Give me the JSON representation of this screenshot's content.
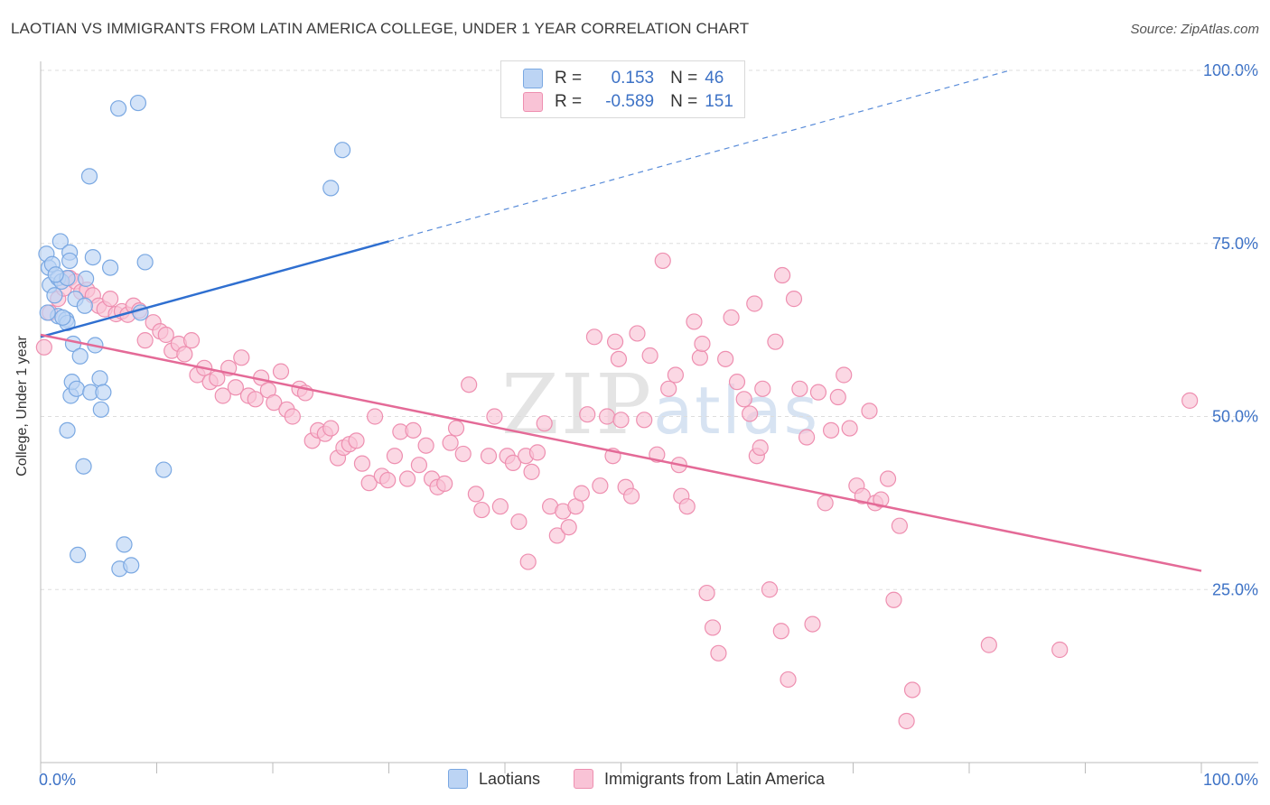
{
  "title": "LAOTIAN VS IMMIGRANTS FROM LATIN AMERICA COLLEGE, UNDER 1 YEAR CORRELATION CHART",
  "source": "Source: ZipAtlas.com",
  "watermark": {
    "zip": "ZIP",
    "atlas": "atlas"
  },
  "legend": {
    "r_label": "R =",
    "n_label": "N =",
    "rows": [
      {
        "r": "0.153",
        "n": "46"
      },
      {
        "r": "-0.589",
        "n": "151"
      }
    ]
  },
  "colors": {
    "blue_fill": "#bcd4f4",
    "blue_stroke": "#7aa8e2",
    "blue_line": "#2f6fd0",
    "pink_fill": "#f9c3d6",
    "pink_stroke": "#ee8fb0",
    "pink_line": "#e46a97",
    "tick_text": "#3d72c6"
  },
  "chart_data": {
    "type": "scatter",
    "title": "LAOTIAN VS IMMIGRANTS FROM LATIN AMERICA COLLEGE, UNDER 1 YEAR CORRELATION CHART",
    "xlabel": "",
    "ylabel": "College, Under 1 year",
    "xlim": [
      0,
      100
    ],
    "ylim": [
      0,
      105
    ],
    "x_tick_labels": [
      "0.0%",
      "100.0%"
    ],
    "y_ticks": [
      25,
      50,
      75,
      100
    ],
    "y_tick_labels": [
      "25.0%",
      "50.0%",
      "75.0%",
      "100.0%"
    ],
    "grid": "horizontal dashed",
    "legend_position": "top-center",
    "series": [
      {
        "name": "Laotians",
        "r": 0.153,
        "n": 46,
        "trend": {
          "x": [
            0,
            30
          ],
          "y": [
            61.5,
            75.3
          ],
          "extended_to": [
            83.5,
            100
          ]
        },
        "points": [
          [
            0.5,
            73.5
          ],
          [
            0.7,
            71.5
          ],
          [
            0.8,
            69.0
          ],
          [
            1.0,
            72.0
          ],
          [
            1.2,
            67.5
          ],
          [
            1.5,
            70.0
          ],
          [
            1.8,
            69.5
          ],
          [
            1.5,
            64.5
          ],
          [
            1.7,
            75.3
          ],
          [
            2.2,
            64.0
          ],
          [
            2.3,
            63.5
          ],
          [
            2.3,
            70.0
          ],
          [
            2.5,
            73.7
          ],
          [
            2.3,
            48.0
          ],
          [
            2.5,
            72.5
          ],
          [
            3.0,
            67.0
          ],
          [
            2.6,
            53.0
          ],
          [
            2.7,
            55.0
          ],
          [
            2.8,
            60.5
          ],
          [
            3.1,
            54.0
          ],
          [
            3.4,
            58.7
          ],
          [
            3.2,
            30.0
          ],
          [
            3.7,
            42.8
          ],
          [
            3.8,
            66.0
          ],
          [
            3.9,
            69.9
          ],
          [
            4.2,
            84.7
          ],
          [
            4.3,
            53.5
          ],
          [
            4.5,
            73.0
          ],
          [
            4.7,
            60.3
          ],
          [
            5.1,
            55.5
          ],
          [
            5.2,
            51.0
          ],
          [
            5.4,
            53.5
          ],
          [
            6.0,
            71.5
          ],
          [
            6.7,
            94.5
          ],
          [
            6.8,
            28.0
          ],
          [
            7.2,
            31.5
          ],
          [
            7.8,
            28.5
          ],
          [
            8.4,
            95.3
          ],
          [
            8.6,
            65.0
          ],
          [
            9.0,
            72.3
          ],
          [
            10.6,
            42.3
          ],
          [
            25.0,
            83.0
          ],
          [
            26.0,
            88.5
          ],
          [
            0.6,
            65.0
          ],
          [
            1.3,
            70.5
          ],
          [
            1.9,
            64.3
          ]
        ]
      },
      {
        "name": "Immigrants from Latin America",
        "r": -0.589,
        "n": 151,
        "trend": {
          "x": [
            0,
            100
          ],
          "y": [
            61.8,
            27.7
          ]
        },
        "points": [
          [
            0.3,
            60.0
          ],
          [
            0.8,
            65.0
          ],
          [
            1.5,
            67.0
          ],
          [
            2.0,
            68.5
          ],
          [
            2.5,
            70.0
          ],
          [
            3.0,
            69.5
          ],
          [
            3.5,
            68.0
          ],
          [
            4.0,
            68.3
          ],
          [
            4.5,
            67.5
          ],
          [
            5.0,
            66.0
          ],
          [
            5.5,
            65.5
          ],
          [
            6.0,
            67.0
          ],
          [
            6.5,
            64.8
          ],
          [
            7.0,
            65.2
          ],
          [
            7.5,
            64.7
          ],
          [
            8.0,
            66.0
          ],
          [
            8.5,
            65.3
          ],
          [
            9.0,
            61.0
          ],
          [
            9.7,
            63.6
          ],
          [
            10.3,
            62.3
          ],
          [
            10.8,
            61.8
          ],
          [
            11.3,
            59.5
          ],
          [
            11.9,
            60.5
          ],
          [
            12.4,
            59.0
          ],
          [
            13.0,
            61.0
          ],
          [
            13.5,
            56.0
          ],
          [
            14.1,
            57.0
          ],
          [
            14.6,
            55.0
          ],
          [
            15.2,
            55.5
          ],
          [
            15.7,
            53.0
          ],
          [
            16.2,
            57.0
          ],
          [
            16.8,
            54.2
          ],
          [
            17.3,
            58.5
          ],
          [
            17.9,
            53.0
          ],
          [
            18.5,
            52.5
          ],
          [
            19.0,
            55.6
          ],
          [
            19.6,
            53.8
          ],
          [
            20.1,
            52.0
          ],
          [
            20.7,
            56.5
          ],
          [
            21.2,
            51.0
          ],
          [
            21.7,
            50.0
          ],
          [
            22.3,
            54.0
          ],
          [
            22.8,
            53.4
          ],
          [
            23.4,
            46.5
          ],
          [
            23.9,
            48.0
          ],
          [
            24.5,
            47.5
          ],
          [
            25.0,
            48.3
          ],
          [
            25.6,
            44.0
          ],
          [
            26.1,
            45.5
          ],
          [
            26.6,
            46.0
          ],
          [
            27.2,
            46.5
          ],
          [
            27.7,
            43.2
          ],
          [
            28.3,
            40.4
          ],
          [
            28.8,
            50.0
          ],
          [
            29.4,
            41.4
          ],
          [
            29.9,
            40.8
          ],
          [
            30.5,
            44.3
          ],
          [
            31.0,
            47.8
          ],
          [
            31.6,
            41.0
          ],
          [
            32.1,
            48.0
          ],
          [
            32.6,
            43.0
          ],
          [
            33.2,
            45.8
          ],
          [
            33.7,
            41.0
          ],
          [
            34.2,
            39.8
          ],
          [
            34.8,
            40.3
          ],
          [
            35.3,
            46.2
          ],
          [
            35.8,
            48.3
          ],
          [
            36.4,
            44.6
          ],
          [
            36.9,
            54.6
          ],
          [
            37.5,
            38.8
          ],
          [
            38.0,
            36.5
          ],
          [
            38.6,
            44.3
          ],
          [
            39.1,
            50.0
          ],
          [
            39.6,
            37.0
          ],
          [
            40.2,
            44.3
          ],
          [
            40.7,
            43.3
          ],
          [
            41.2,
            34.8
          ],
          [
            41.8,
            44.3
          ],
          [
            42.3,
            42.0
          ],
          [
            42.8,
            44.8
          ],
          [
            43.4,
            49.0
          ],
          [
            43.9,
            37.0
          ],
          [
            44.5,
            32.8
          ],
          [
            45.0,
            36.3
          ],
          [
            45.5,
            34.0
          ],
          [
            46.1,
            37.0
          ],
          [
            46.6,
            38.9
          ],
          [
            47.1,
            50.3
          ],
          [
            47.7,
            61.5
          ],
          [
            48.2,
            40.0
          ],
          [
            48.8,
            50.0
          ],
          [
            49.3,
            44.3
          ],
          [
            49.8,
            58.3
          ],
          [
            50.4,
            39.8
          ],
          [
            50.9,
            38.5
          ],
          [
            51.4,
            62.0
          ],
          [
            52.0,
            49.5
          ],
          [
            52.5,
            58.8
          ],
          [
            53.1,
            44.5
          ],
          [
            53.6,
            72.5
          ],
          [
            54.1,
            54.0
          ],
          [
            54.7,
            56.0
          ],
          [
            55.2,
            38.5
          ],
          [
            55.7,
            37.0
          ],
          [
            56.3,
            63.7
          ],
          [
            56.8,
            58.5
          ],
          [
            57.4,
            24.5
          ],
          [
            57.9,
            19.5
          ],
          [
            58.4,
            15.8
          ],
          [
            59.0,
            58.3
          ],
          [
            59.5,
            64.3
          ],
          [
            60.0,
            55.0
          ],
          [
            60.6,
            52.5
          ],
          [
            61.1,
            50.4
          ],
          [
            61.7,
            44.3
          ],
          [
            62.2,
            54.0
          ],
          [
            62.8,
            25.0
          ],
          [
            63.3,
            60.8
          ],
          [
            63.8,
            19.0
          ],
          [
            64.4,
            12.0
          ],
          [
            64.9,
            67.0
          ],
          [
            65.4,
            54.0
          ],
          [
            66.0,
            47.0
          ],
          [
            66.5,
            20.0
          ],
          [
            67.0,
            53.5
          ],
          [
            67.6,
            37.5
          ],
          [
            68.1,
            48.0
          ],
          [
            68.7,
            52.8
          ],
          [
            69.2,
            56.0
          ],
          [
            69.7,
            48.3
          ],
          [
            70.3,
            40.0
          ],
          [
            70.8,
            38.5
          ],
          [
            71.4,
            50.8
          ],
          [
            71.9,
            37.5
          ],
          [
            72.4,
            38.0
          ],
          [
            73.0,
            41.0
          ],
          [
            73.5,
            23.5
          ],
          [
            74.0,
            34.2
          ],
          [
            74.6,
            6.0
          ],
          [
            75.1,
            10.5
          ],
          [
            81.7,
            17.0
          ],
          [
            87.8,
            16.3
          ],
          [
            99.0,
            52.3
          ],
          [
            50.0,
            49.5
          ],
          [
            42.0,
            29.0
          ],
          [
            49.5,
            60.8
          ],
          [
            61.5,
            66.3
          ],
          [
            63.9,
            70.4
          ],
          [
            57.0,
            60.5
          ],
          [
            55.0,
            43.0
          ],
          [
            62.0,
            45.5
          ]
        ]
      }
    ]
  },
  "bottom_legend": [
    {
      "label": "Laotians"
    },
    {
      "label": "Immigrants from Latin America"
    }
  ]
}
